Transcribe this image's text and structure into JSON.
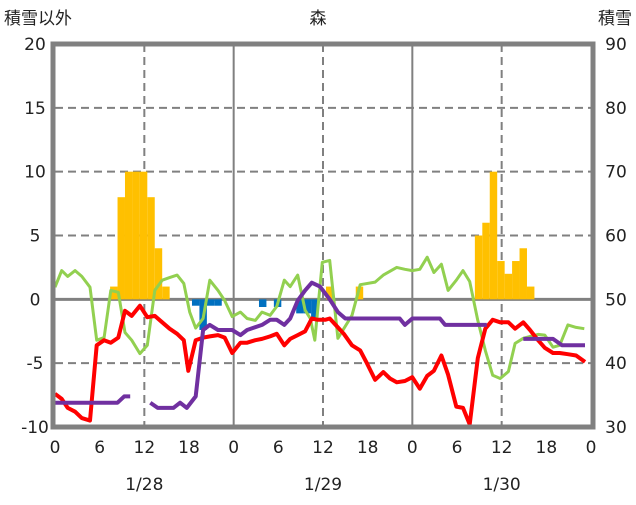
{
  "chart_data": {
    "type": "bar+line",
    "title": "森",
    "left_axis_label": "積雪以外",
    "right_axis_label": "積雪",
    "ylim_left": [
      -10,
      20
    ],
    "ylim_right": [
      30,
      90
    ],
    "yticks_left": [
      "20",
      "15",
      "10",
      "5",
      "0",
      "-5",
      "-10"
    ],
    "yticks_right": [
      "90",
      "80",
      "70",
      "60",
      "50",
      "40",
      "30"
    ],
    "xlim_hours": [
      0,
      72
    ],
    "xticks": [
      "0",
      "6",
      "12",
      "18",
      "0",
      "6",
      "12",
      "18",
      "0",
      "6",
      "12",
      "18",
      "0"
    ],
    "date_labels": [
      "1/28",
      "1/29",
      "1/30"
    ],
    "grid": true,
    "colors": {
      "snowfall": "#FFC000",
      "negative_bar": "#0070C0",
      "red": "#FF0000",
      "purple": "#7030A0",
      "green": "#92D050",
      "axis": "#808080"
    },
    "bars_positive": [
      [
        8,
        1
      ],
      [
        9,
        8
      ],
      [
        10,
        10
      ],
      [
        11,
        10
      ],
      [
        12,
        10
      ],
      [
        13,
        8
      ],
      [
        14,
        4
      ],
      [
        15,
        1
      ],
      [
        37,
        1
      ],
      [
        41,
        1
      ],
      [
        57,
        5
      ],
      [
        58,
        6
      ],
      [
        59,
        10
      ],
      [
        60,
        3
      ],
      [
        61,
        2
      ],
      [
        62,
        3
      ],
      [
        63,
        4
      ],
      [
        64,
        1
      ]
    ],
    "bars_negative": [
      [
        19,
        -0.5
      ],
      [
        20,
        -2.4
      ],
      [
        21,
        -0.5
      ],
      [
        22,
        -0.5
      ],
      [
        28,
        -0.6
      ],
      [
        30,
        -0.6
      ],
      [
        33,
        -1.1
      ],
      [
        34,
        -1.1
      ],
      [
        35,
        -1.6
      ]
    ],
    "red_series": [
      [
        0,
        -7.4
      ],
      [
        0.9,
        -7.8
      ],
      [
        1.7,
        -8.5
      ],
      [
        2.7,
        -8.8
      ],
      [
        3.6,
        -9.3
      ],
      [
        4.7,
        -9.5
      ],
      [
        5.6,
        -3.6
      ],
      [
        6.6,
        -3.2
      ],
      [
        7.5,
        -3.4
      ],
      [
        8.5,
        -3.0
      ],
      [
        9.4,
        -0.9
      ],
      [
        10.3,
        -1.3
      ],
      [
        11.4,
        -0.5
      ],
      [
        12.4,
        -1.4
      ],
      [
        13.4,
        -1.3
      ],
      [
        14.4,
        -1.8
      ],
      [
        15.4,
        -2.3
      ],
      [
        16.4,
        -2.7
      ],
      [
        17.3,
        -3.2
      ],
      [
        17.9,
        -5.6
      ],
      [
        18.9,
        -3.2
      ],
      [
        19.9,
        -3.0
      ],
      [
        20.8,
        -2.9
      ],
      [
        21.9,
        -2.8
      ],
      [
        22.8,
        -3.0
      ],
      [
        23.8,
        -4.2
      ],
      [
        24.9,
        -3.4
      ],
      [
        25.8,
        -3.4
      ],
      [
        26.9,
        -3.2
      ],
      [
        27.8,
        -3.1
      ],
      [
        28.9,
        -2.9
      ],
      [
        29.8,
        -2.7
      ],
      [
        30.8,
        -3.6
      ],
      [
        31.6,
        -3.1
      ],
      [
        32.6,
        -2.8
      ],
      [
        33.6,
        -2.5
      ],
      [
        34.5,
        -1.5
      ],
      [
        35.3,
        -1.6
      ],
      [
        36.3,
        -1.6
      ],
      [
        36.9,
        -1.5
      ],
      [
        38.0,
        -2.2
      ],
      [
        38.8,
        -2.7
      ],
      [
        39.9,
        -3.6
      ],
      [
        41.0,
        -4.0
      ],
      [
        41.9,
        -5.0
      ],
      [
        43.0,
        -6.3
      ],
      [
        44.1,
        -5.7
      ],
      [
        45.0,
        -6.2
      ],
      [
        45.9,
        -6.5
      ],
      [
        47.0,
        -6.4
      ],
      [
        48.0,
        -6.1
      ],
      [
        49.0,
        -7.0
      ],
      [
        50.0,
        -6.0
      ],
      [
        50.9,
        -5.6
      ],
      [
        51.9,
        -4.4
      ],
      [
        52.8,
        -5.9
      ],
      [
        53.9,
        -8.4
      ],
      [
        54.8,
        -8.5
      ],
      [
        55.7,
        -9.8
      ],
      [
        56.8,
        -4.6
      ],
      [
        57.8,
        -2.3
      ],
      [
        58.8,
        -1.6
      ],
      [
        59.8,
        -1.8
      ],
      [
        60.9,
        -1.8
      ],
      [
        61.8,
        -2.3
      ],
      [
        62.9,
        -1.8
      ],
      [
        63.8,
        -2.4
      ],
      [
        64.9,
        -3.2
      ],
      [
        65.8,
        -3.8
      ],
      [
        66.9,
        -4.2
      ],
      [
        67.8,
        -4.2
      ],
      [
        68.9,
        -4.3
      ],
      [
        70.0,
        -4.4
      ],
      [
        71.2,
        -4.9
      ]
    ],
    "purple_series_segments": [
      [
        [
          0,
          -8.1
        ],
        [
          8.4,
          -8.1
        ],
        [
          9.3,
          -7.6
        ],
        [
          10.1,
          -7.6
        ]
      ],
      [
        [
          12.8,
          -8.1
        ],
        [
          13.8,
          -8.5
        ],
        [
          15.9,
          -8.5
        ],
        [
          16.8,
          -8.1
        ],
        [
          17.7,
          -8.5
        ],
        [
          18.9,
          -7.6
        ],
        [
          19.9,
          -2.4
        ],
        [
          20.8,
          -2.0
        ],
        [
          21.9,
          -2.4
        ],
        [
          23.8,
          -2.4
        ],
        [
          24.9,
          -2.8
        ],
        [
          25.8,
          -2.4
        ],
        [
          27.8,
          -2.0
        ],
        [
          28.9,
          -1.6
        ],
        [
          29.8,
          -1.6
        ],
        [
          30.8,
          -2.0
        ],
        [
          31.6,
          -1.5
        ],
        [
          32.6,
          -0.1
        ],
        [
          33.6,
          0.7
        ],
        [
          34.5,
          1.3
        ],
        [
          35.6,
          1.0
        ],
        [
          36.9,
          0.0
        ],
        [
          38.0,
          -1.0
        ],
        [
          39.0,
          -1.5
        ],
        [
          46.3,
          -1.5
        ],
        [
          47.0,
          -2.0
        ],
        [
          48.0,
          -1.5
        ],
        [
          51.7,
          -1.5
        ],
        [
          52.4,
          -2.0
        ],
        [
          58.0,
          -2.0
        ]
      ],
      [
        [
          62.9,
          -3.1
        ],
        [
          66.9,
          -3.1
        ],
        [
          68.1,
          -3.6
        ],
        [
          71.2,
          -3.6
        ]
      ]
    ],
    "green_series_right_axis": [
      [
        0,
        51.9
      ],
      [
        0.9,
        54.5
      ],
      [
        1.7,
        53.6
      ],
      [
        2.7,
        54.5
      ],
      [
        3.6,
        53.6
      ],
      [
        4.7,
        51.9
      ],
      [
        5.6,
        43.6
      ],
      [
        6.6,
        44.0
      ],
      [
        7.5,
        51.4
      ],
      [
        8.5,
        51.1
      ],
      [
        9.4,
        44.8
      ],
      [
        10.3,
        43.6
      ],
      [
        11.4,
        41.5
      ],
      [
        12.4,
        42.8
      ],
      [
        13.4,
        51.4
      ],
      [
        14.4,
        53.0
      ],
      [
        15.4,
        53.4
      ],
      [
        16.4,
        53.8
      ],
      [
        17.3,
        52.5
      ],
      [
        18.1,
        48.0
      ],
      [
        18.9,
        45.5
      ],
      [
        19.9,
        47.0
      ],
      [
        20.8,
        53.0
      ],
      [
        21.9,
        51.4
      ],
      [
        22.8,
        49.8
      ],
      [
        23.8,
        47.3
      ],
      [
        24.9,
        48.0
      ],
      [
        25.8,
        47.0
      ],
      [
        26.9,
        46.7
      ],
      [
        27.8,
        48.0
      ],
      [
        28.9,
        47.5
      ],
      [
        29.8,
        48.9
      ],
      [
        30.8,
        53.0
      ],
      [
        31.6,
        52.0
      ],
      [
        32.6,
        53.8
      ],
      [
        33.6,
        48.3
      ],
      [
        34.3,
        47.0
      ],
      [
        34.9,
        43.6
      ],
      [
        35.9,
        55.8
      ],
      [
        36.9,
        56.1
      ],
      [
        38.0,
        43.9
      ],
      [
        38.9,
        45.6
      ],
      [
        39.9,
        47.5
      ],
      [
        41.0,
        52.3
      ],
      [
        43.0,
        52.7
      ],
      [
        44.1,
        53.8
      ],
      [
        45.9,
        55.0
      ],
      [
        47.0,
        54.7
      ],
      [
        48.0,
        54.5
      ],
      [
        49.0,
        54.7
      ],
      [
        50.0,
        56.6
      ],
      [
        50.9,
        54.2
      ],
      [
        51.9,
        55.5
      ],
      [
        52.8,
        51.4
      ],
      [
        53.9,
        53.0
      ],
      [
        54.8,
        54.5
      ],
      [
        55.7,
        52.8
      ],
      [
        56.8,
        46.7
      ],
      [
        57.8,
        42.0
      ],
      [
        58.8,
        38.1
      ],
      [
        59.8,
        37.6
      ],
      [
        60.9,
        38.7
      ],
      [
        61.8,
        43.1
      ],
      [
        62.9,
        43.9
      ],
      [
        63.8,
        44.2
      ],
      [
        64.9,
        44.5
      ],
      [
        65.8,
        44.4
      ],
      [
        66.9,
        42.5
      ],
      [
        67.8,
        42.8
      ],
      [
        68.9,
        46.0
      ],
      [
        70.0,
        45.6
      ],
      [
        71.1,
        45.4
      ]
    ]
  }
}
